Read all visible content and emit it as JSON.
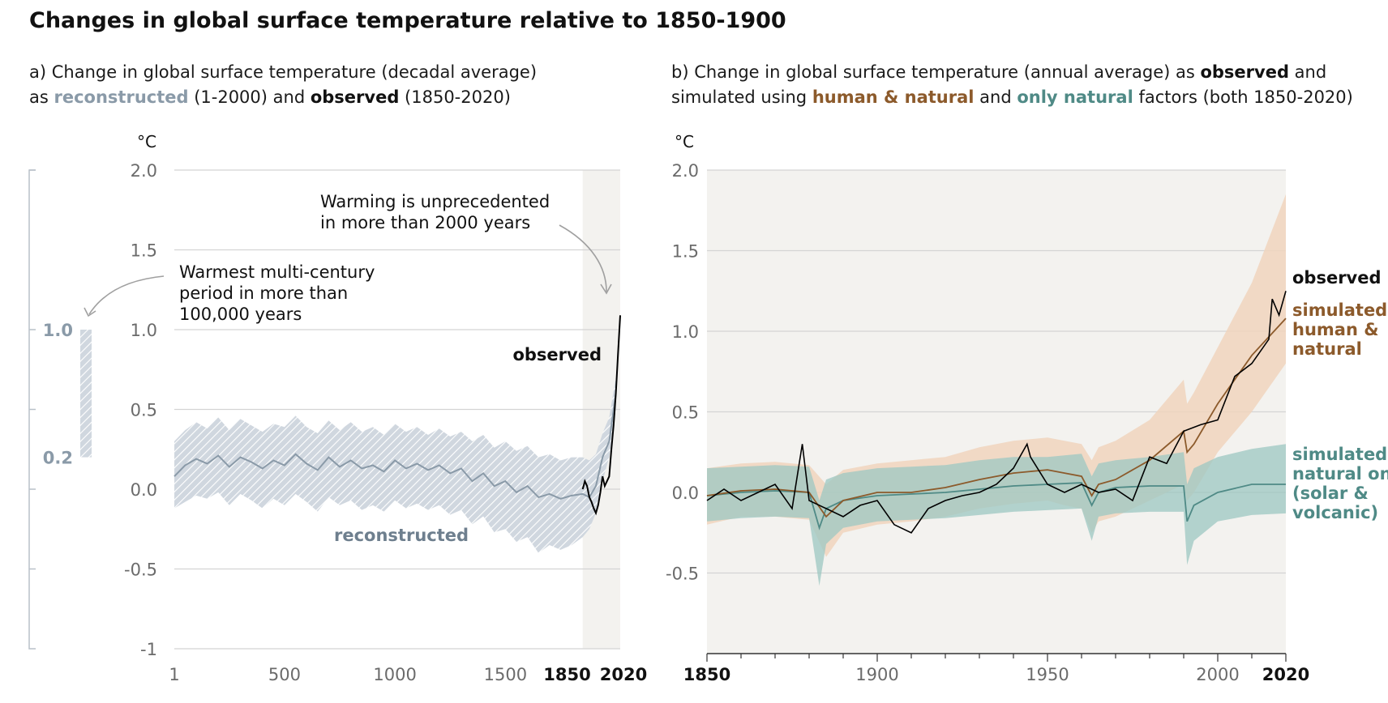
{
  "title": "Changes in global surface temperature relative to 1850-1900",
  "colors": {
    "reconstructed": "#8a9aa8",
    "reconstructed_band": "#c5cdd6",
    "observed": "#000000",
    "human_natural": "#8c5a2b",
    "human_natural_band": "#f0d5bd",
    "natural_only": "#4f8a86",
    "natural_only_band": "#9cc7c2",
    "shade": "#f3f2ef"
  },
  "chart_data": [
    {
      "type": "line",
      "panel": "a",
      "subtitle_lines": [
        [
          {
            "text": "a) Change in global surface temperature (decadal average)",
            "style": "normal"
          }
        ],
        [
          {
            "text": "as ",
            "style": "normal"
          },
          {
            "text": "reconstructed",
            "style": "reconstructed"
          },
          {
            "text": " (1-2000) and ",
            "style": "normal"
          },
          {
            "text": "observed",
            "style": "bold"
          },
          {
            "text": " (1850-2020)",
            "style": "normal"
          }
        ]
      ],
      "unit": "°C",
      "ylim": [
        -1,
        2
      ],
      "xlim": [
        1,
        2020
      ],
      "yticks": [
        {
          "v": 2,
          "t": "2.0"
        },
        {
          "v": 1.5,
          "t": "1.5"
        },
        {
          "v": 1,
          "t": "1.0"
        },
        {
          "v": 0.5,
          "t": "0.5"
        },
        {
          "v": 0,
          "t": "0.0"
        },
        {
          "v": -0.5,
          "t": "-0.5"
        },
        {
          "v": -1,
          "t": "-1"
        }
      ],
      "xticks": [
        {
          "v": 1,
          "t": "1",
          "bold": false
        },
        {
          "v": 500,
          "t": "500",
          "bold": false
        },
        {
          "v": 1000,
          "t": "1000",
          "bold": false
        },
        {
          "v": 1500,
          "t": "1500",
          "bold": false
        },
        {
          "v": 1850,
          "t": "1850",
          "bold": true
        },
        {
          "v": 2020,
          "t": "2020",
          "bold": true
        }
      ],
      "grid": true,
      "shaded_period": [
        1850,
        2020
      ],
      "series": [
        {
          "name": "reconstructed",
          "x": [
            1,
            50,
            100,
            150,
            200,
            250,
            300,
            350,
            400,
            450,
            500,
            550,
            600,
            650,
            700,
            750,
            800,
            850,
            900,
            950,
            1000,
            1050,
            1100,
            1150,
            1200,
            1250,
            1300,
            1350,
            1400,
            1450,
            1500,
            1550,
            1600,
            1650,
            1700,
            1750,
            1800,
            1850,
            1880,
            1910,
            1940,
            1970,
            2000
          ],
          "values": [
            0.08,
            0.15,
            0.19,
            0.16,
            0.21,
            0.14,
            0.2,
            0.17,
            0.13,
            0.18,
            0.15,
            0.22,
            0.16,
            0.12,
            0.2,
            0.14,
            0.18,
            0.13,
            0.15,
            0.11,
            0.18,
            0.13,
            0.16,
            0.12,
            0.15,
            0.1,
            0.13,
            0.05,
            0.1,
            0.02,
            0.05,
            -0.02,
            0.02,
            -0.05,
            -0.03,
            -0.06,
            -0.04,
            -0.03,
            -0.05,
            0.02,
            0.2,
            0.3,
            0.6
          ],
          "band_low": [
            -0.12,
            -0.08,
            -0.04,
            -0.06,
            -0.02,
            -0.1,
            -0.03,
            -0.07,
            -0.12,
            -0.06,
            -0.1,
            -0.03,
            -0.08,
            -0.14,
            -0.05,
            -0.1,
            -0.07,
            -0.13,
            -0.1,
            -0.14,
            -0.07,
            -0.12,
            -0.09,
            -0.13,
            -0.1,
            -0.16,
            -0.13,
            -0.22,
            -0.17,
            -0.27,
            -0.25,
            -0.33,
            -0.3,
            -0.4,
            -0.35,
            -0.38,
            -0.35,
            -0.3,
            -0.25,
            -0.15,
            0.05,
            0.2,
            0.5
          ],
          "band_high": [
            0.3,
            0.37,
            0.42,
            0.38,
            0.45,
            0.37,
            0.44,
            0.4,
            0.36,
            0.41,
            0.39,
            0.46,
            0.39,
            0.35,
            0.43,
            0.37,
            0.42,
            0.36,
            0.39,
            0.34,
            0.41,
            0.36,
            0.39,
            0.34,
            0.38,
            0.33,
            0.36,
            0.3,
            0.34,
            0.26,
            0.3,
            0.24,
            0.27,
            0.2,
            0.22,
            0.18,
            0.2,
            0.2,
            0.18,
            0.22,
            0.35,
            0.45,
            0.7
          ]
        },
        {
          "name": "observed",
          "x": [
            1850,
            1860,
            1870,
            1880,
            1890,
            1900,
            1910,
            1920,
            1930,
            1940,
            1950,
            1960,
            1970,
            1980,
            1990,
            2000,
            2010,
            2020
          ],
          "values": [
            0.0,
            0.05,
            0.02,
            -0.05,
            -0.08,
            -0.12,
            -0.15,
            -0.1,
            -0.02,
            0.08,
            0.02,
            0.05,
            0.08,
            0.25,
            0.4,
            0.6,
            0.85,
            1.09
          ]
        }
      ],
      "bar_range": {
        "low": 0.2,
        "high": 1.0,
        "label_low": "0.2",
        "label_high": "1.0"
      },
      "annotations": {
        "warmest": [
          "Warmest multi-century",
          "period in more than",
          "100,000 years"
        ],
        "unprecedented": [
          "Warming is unprecedented",
          "in more than 2000 years"
        ],
        "observed_label": "observed",
        "reconstructed_label": "reconstructed"
      }
    },
    {
      "type": "line",
      "panel": "b",
      "subtitle_lines": [
        [
          {
            "text": "b) Change in global surface temperature (annual average) as ",
            "style": "normal"
          },
          {
            "text": "observed",
            "style": "bold"
          },
          {
            "text": " and",
            "style": "normal"
          }
        ],
        [
          {
            "text": "simulated using ",
            "style": "normal"
          },
          {
            "text": "human & natural",
            "style": "human"
          },
          {
            "text": " and ",
            "style": "normal"
          },
          {
            "text": "only natural",
            "style": "natural"
          },
          {
            "text": " factors (both 1850-2020)",
            "style": "normal"
          }
        ]
      ],
      "unit": "°C",
      "ylim": [
        -1,
        2
      ],
      "xlim": [
        1850,
        2020
      ],
      "yticks": [
        {
          "v": 2,
          "t": "2.0"
        },
        {
          "v": 1.5,
          "t": "1.5"
        },
        {
          "v": 1,
          "t": "1.0"
        },
        {
          "v": 0.5,
          "t": "0.5"
        },
        {
          "v": 0,
          "t": "0.0"
        },
        {
          "v": -0.5,
          "t": "-0.5"
        }
      ],
      "xticks": [
        {
          "v": 1850,
          "t": "1850",
          "bold": true
        },
        {
          "v": 1900,
          "t": "1900",
          "bold": false
        },
        {
          "v": 1950,
          "t": "1950",
          "bold": false
        },
        {
          "v": 2000,
          "t": "2000",
          "bold": false
        },
        {
          "v": 2020,
          "t": "2020",
          "bold": true
        }
      ],
      "grid": true,
      "series": [
        {
          "name": "observed",
          "x": [
            1850,
            1855,
            1860,
            1865,
            1870,
            1875,
            1878,
            1880,
            1885,
            1890,
            1895,
            1900,
            1905,
            1910,
            1915,
            1920,
            1925,
            1930,
            1935,
            1940,
            1944,
            1945,
            1950,
            1955,
            1960,
            1965,
            1970,
            1975,
            1980,
            1985,
            1990,
            1995,
            2000,
            2005,
            2010,
            2015,
            2016,
            2018,
            2020
          ],
          "values": [
            -0.05,
            0.02,
            -0.05,
            0.0,
            0.05,
            -0.1,
            0.3,
            -0.05,
            -0.1,
            -0.15,
            -0.08,
            -0.05,
            -0.2,
            -0.25,
            -0.1,
            -0.05,
            -0.02,
            0.0,
            0.05,
            0.15,
            0.3,
            0.22,
            0.05,
            0.0,
            0.05,
            0.0,
            0.02,
            -0.05,
            0.22,
            0.18,
            0.38,
            0.42,
            0.45,
            0.72,
            0.8,
            0.95,
            1.2,
            1.1,
            1.25
          ]
        },
        {
          "name": "simulated human & natural",
          "x": [
            1850,
            1860,
            1870,
            1880,
            1885,
            1890,
            1900,
            1910,
            1920,
            1930,
            1940,
            1950,
            1955,
            1960,
            1963,
            1965,
            1970,
            1980,
            1990,
            1991,
            1993,
            2000,
            2010,
            2020
          ],
          "values": [
            -0.02,
            0.01,
            0.02,
            0.0,
            -0.15,
            -0.05,
            0.0,
            0.0,
            0.03,
            0.08,
            0.12,
            0.14,
            0.12,
            0.1,
            -0.02,
            0.05,
            0.08,
            0.2,
            0.38,
            0.25,
            0.3,
            0.55,
            0.85,
            1.08
          ],
          "band_low": [
            -0.2,
            -0.15,
            -0.15,
            -0.17,
            -0.4,
            -0.25,
            -0.2,
            -0.18,
            -0.15,
            -0.1,
            -0.07,
            -0.05,
            -0.08,
            -0.1,
            -0.25,
            -0.18,
            -0.15,
            -0.05,
            0.05,
            -0.05,
            0.0,
            0.25,
            0.5,
            0.8
          ],
          "band_high": [
            0.15,
            0.18,
            0.19,
            0.17,
            0.05,
            0.14,
            0.18,
            0.2,
            0.22,
            0.28,
            0.32,
            0.34,
            0.32,
            0.3,
            0.2,
            0.28,
            0.32,
            0.45,
            0.7,
            0.55,
            0.62,
            0.9,
            1.3,
            1.85
          ]
        },
        {
          "name": "simulated natural only",
          "x": [
            1850,
            1860,
            1870,
            1880,
            1883,
            1885,
            1890,
            1900,
            1910,
            1920,
            1930,
            1940,
            1950,
            1960,
            1963,
            1965,
            1970,
            1980,
            1990,
            1991,
            1993,
            2000,
            2010,
            2020
          ],
          "values": [
            -0.02,
            0.0,
            0.01,
            0.0,
            -0.22,
            -0.1,
            -0.05,
            -0.02,
            -0.01,
            0.0,
            0.02,
            0.04,
            0.05,
            0.06,
            -0.08,
            0.0,
            0.03,
            0.04,
            0.04,
            -0.18,
            -0.08,
            0.0,
            0.05,
            0.05
          ],
          "band_low": [
            -0.18,
            -0.16,
            -0.15,
            -0.16,
            -0.58,
            -0.32,
            -0.22,
            -0.18,
            -0.17,
            -0.16,
            -0.14,
            -0.12,
            -0.11,
            -0.1,
            -0.3,
            -0.15,
            -0.13,
            -0.12,
            -0.12,
            -0.45,
            -0.3,
            -0.18,
            -0.14,
            -0.13
          ],
          "band_high": [
            0.15,
            0.16,
            0.17,
            0.16,
            -0.05,
            0.08,
            0.12,
            0.15,
            0.16,
            0.17,
            0.2,
            0.22,
            0.22,
            0.24,
            0.1,
            0.18,
            0.2,
            0.22,
            0.25,
            0.05,
            0.15,
            0.22,
            0.27,
            0.3
          ]
        }
      ],
      "legend_labels": {
        "observed": [
          "observed"
        ],
        "human": [
          "simulated",
          "human &",
          "natural"
        ],
        "natural": [
          "simulated",
          "natural only",
          "(solar &",
          "volcanic)"
        ]
      }
    }
  ]
}
